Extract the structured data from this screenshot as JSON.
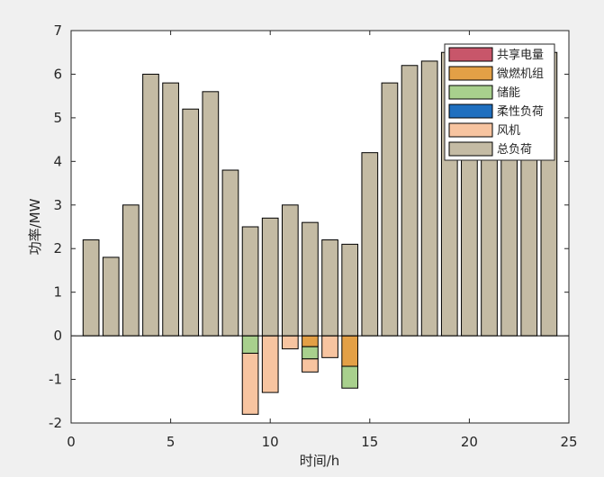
{
  "chart_data": {
    "type": "bar",
    "stacked": true,
    "xlabel": "时间/h",
    "ylabel": "功率/MW",
    "xlim": [
      0,
      25
    ],
    "ylim": [
      -2,
      7
    ],
    "xticks": [
      0,
      5,
      10,
      15,
      20,
      25
    ],
    "yticks": [
      -2,
      -1,
      0,
      1,
      2,
      3,
      4,
      5,
      6,
      7
    ],
    "grid": false,
    "legend_position": "top-right",
    "x": [
      1,
      2,
      3,
      4,
      5,
      6,
      7,
      8,
      9,
      10,
      11,
      12,
      13,
      14,
      15,
      16,
      17,
      18,
      19,
      20,
      21,
      22,
      23,
      24
    ],
    "series": [
      {
        "name": "共享电量",
        "color": "#c8566a",
        "values": [
          0,
          0,
          0,
          0,
          0,
          0,
          0,
          0,
          0,
          0,
          0,
          0,
          0,
          0,
          0,
          0,
          0,
          0,
          0,
          0,
          0,
          0,
          0,
          0
        ]
      },
      {
        "name": "微燃机组",
        "color": "#e3a046",
        "values": [
          0,
          0,
          0,
          0,
          0,
          0,
          0,
          0,
          0,
          0,
          0,
          -0.25,
          0,
          -0.7,
          0,
          0,
          0,
          0,
          0,
          0,
          0,
          0,
          0,
          0
        ]
      },
      {
        "name": "储能",
        "color": "#a8d08d",
        "values": [
          0,
          0,
          0,
          0,
          0,
          0,
          0,
          0,
          -0.4,
          0,
          0,
          -0.28,
          0,
          -0.5,
          0,
          0,
          0,
          0,
          0,
          0,
          0,
          0,
          0,
          0
        ]
      },
      {
        "name": "柔性负荷",
        "color": "#1f6fbf",
        "values": [
          0,
          0,
          0,
          0,
          0,
          0,
          0,
          0,
          0,
          0,
          0,
          0,
          0,
          0,
          0,
          0,
          0,
          0,
          0,
          0,
          0,
          0,
          0,
          0
        ]
      },
      {
        "name": "风机",
        "color": "#f7c4a0",
        "values": [
          0,
          0,
          0,
          0,
          0,
          0,
          0,
          0,
          -1.4,
          -1.3,
          -0.3,
          -0.3,
          -0.5,
          0,
          0,
          0,
          0,
          0,
          0,
          0,
          0,
          0,
          0,
          0
        ]
      },
      {
        "name": "总负荷",
        "color": "#c4bba4",
        "values": [
          2.2,
          1.8,
          3.0,
          6.0,
          5.8,
          5.2,
          5.6,
          3.8,
          2.5,
          2.7,
          3.0,
          2.6,
          2.2,
          2.1,
          4.2,
          5.8,
          6.2,
          6.3,
          6.5,
          6.5,
          6.5,
          6.5,
          6.5,
          6.5
        ]
      }
    ]
  }
}
